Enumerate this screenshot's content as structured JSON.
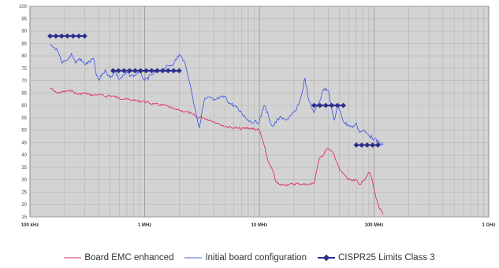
{
  "chart_data": {
    "type": "line",
    "title": "",
    "xlabel": "",
    "ylabel": "",
    "x_scale": "log",
    "xlim": [
      100000,
      1000000000
    ],
    "ylim": [
      15,
      100
    ],
    "grid": true,
    "legend_position": "bottom",
    "background": "#d3d3d3",
    "x_ticks": [
      {
        "value": 100000,
        "label": "100 kHz"
      },
      {
        "value": 1000000,
        "label": "1 MHz"
      },
      {
        "value": 10000000,
        "label": "10 MHz"
      },
      {
        "value": 100000000,
        "label": "100 MHz"
      },
      {
        "value": 1000000000,
        "label": "1 GHz"
      }
    ],
    "y_ticks": [
      15,
      20,
      25,
      30,
      35,
      40,
      45,
      50,
      55,
      60,
      65,
      70,
      75,
      80,
      85,
      90,
      95,
      100
    ],
    "series": [
      {
        "name": "Board EMC enhanced",
        "color": "#e0306a",
        "x": [
          150000,
          170000,
          200000,
          230000,
          260000,
          300000,
          350000,
          400000,
          450000,
          500000,
          600000,
          700000,
          800000,
          1000000,
          1200000,
          1500000,
          1800000,
          2000000,
          2300000,
          2600000,
          2900000,
          3100000,
          3500000,
          4000000,
          4500000,
          5000000,
          6000000,
          7000000,
          8000000,
          9000000,
          10000000,
          11000000,
          12000000,
          13000000,
          14000000,
          15000000,
          18000000,
          22000000,
          26000000,
          30000000,
          33000000,
          36000000,
          38000000,
          40000000,
          45000000,
          50000000,
          55000000,
          60000000,
          65000000,
          70000000,
          75000000,
          80000000,
          85000000,
          90000000,
          95000000,
          100000000,
          110000000,
          120000000
        ],
        "y": [
          67,
          65,
          65.5,
          66,
          64.5,
          65,
          64,
          64.5,
          63.5,
          64,
          63,
          62.5,
          62,
          61.5,
          60.5,
          60,
          58.5,
          58,
          57.5,
          56.5,
          55,
          55.5,
          54.5,
          53.5,
          52.5,
          51.5,
          51,
          50.5,
          51,
          50.5,
          50,
          44,
          37,
          34,
          29,
          28,
          28,
          28.5,
          28,
          28.5,
          38,
          40,
          42,
          42.5,
          40,
          34,
          32,
          30,
          29.5,
          30,
          28,
          29.5,
          31,
          33,
          31,
          26,
          19,
          16
        ]
      },
      {
        "name": "Initial board configuration",
        "color": "#4a5fe0",
        "x": [
          150000,
          170000,
          190000,
          210000,
          230000,
          250000,
          270000,
          300000,
          330000,
          360000,
          380000,
          400000,
          430000,
          460000,
          500000,
          550000,
          600000,
          700000,
          800000,
          900000,
          1000000,
          1200000,
          1500000,
          1800000,
          2000000,
          2200000,
          2400000,
          2600000,
          2800000,
          3000000,
          3300000,
          3600000,
          4000000,
          4500000,
          5000000,
          5500000,
          6000000,
          7000000,
          8000000,
          9000000,
          10000000,
          11000000,
          12000000,
          13000000,
          15000000,
          17000000,
          19000000,
          21000000,
          23000000,
          25000000,
          27000000,
          30000000,
          33000000,
          36000000,
          38000000,
          40000000,
          43000000,
          45000000,
          48000000,
          50000000,
          55000000,
          60000000,
          65000000,
          70000000,
          75000000,
          80000000,
          90000000,
          100000000,
          110000000,
          120000000
        ],
        "y": [
          84,
          83,
          77,
          78,
          81,
          77,
          79,
          76.5,
          77.5,
          79,
          72,
          70,
          73,
          74,
          71,
          74,
          70.5,
          73,
          71.5,
          74,
          70,
          73,
          75,
          77,
          80.5,
          78,
          72,
          64,
          57,
          51,
          62,
          63.5,
          62,
          63,
          63.5,
          61,
          60,
          57,
          54,
          53,
          53.5,
          60,
          56,
          51.5,
          55,
          54,
          56,
          58,
          63,
          71,
          62,
          57,
          61,
          66,
          67,
          66,
          58,
          54,
          60,
          58,
          53,
          52,
          51,
          53,
          49,
          50,
          48,
          46.5,
          45,
          44
        ]
      },
      {
        "name": "CISPR25 Limits Class 3",
        "color": "#2b2f8a",
        "marker": "diamond",
        "segments": [
          {
            "x": [
              150000,
              300000
            ],
            "y": [
              88,
              88
            ]
          },
          {
            "x": [
              530000,
              2000000
            ],
            "y": [
              74,
              74
            ]
          },
          {
            "x": [
              30000000,
              54000000
            ],
            "y": [
              60,
              60
            ]
          },
          {
            "x": [
              70000000,
              108000000
            ],
            "y": [
              44,
              44
            ]
          }
        ]
      }
    ]
  },
  "legend": {
    "items": [
      {
        "label": "Board EMC enhanced",
        "color": "#e59ab4"
      },
      {
        "label": "Initial board configuration",
        "color": "#a7b2ec"
      },
      {
        "label": "CISPR25 Limits Class 3",
        "color": "#2b2f8a"
      }
    ]
  }
}
